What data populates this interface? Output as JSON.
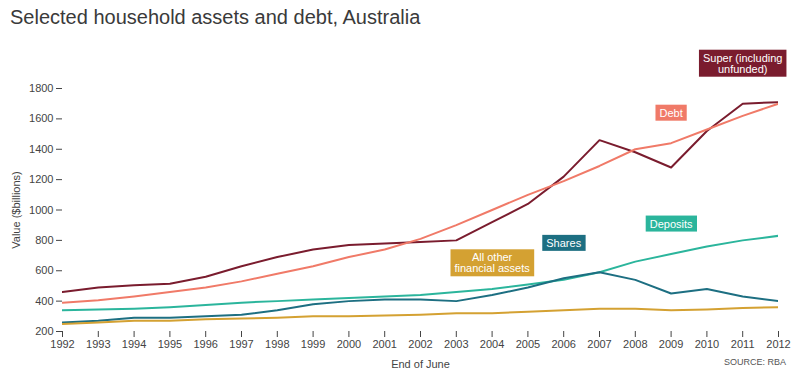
{
  "chart_data": {
    "type": "line",
    "title": "Selected household assets and debt, Australia",
    "caption": "SOURCE: RBA",
    "x_label": "End of June",
    "y_label": "Value ($billions)",
    "x": [
      1992,
      1993,
      1994,
      1995,
      1996,
      1997,
      1998,
      1999,
      2000,
      2001,
      2002,
      2003,
      2004,
      2005,
      2006,
      2007,
      2008,
      2009,
      2010,
      2011,
      2012
    ],
    "series": [
      {
        "name": "Super (including unfunded)",
        "color": "#7a1c2e",
        "values": [
          460,
          490,
          505,
          515,
          560,
          630,
          690,
          740,
          770,
          780,
          790,
          800,
          920,
          1040,
          1220,
          1460,
          1380,
          1280,
          1520,
          1700,
          1710
        ]
      },
      {
        "name": "Debt",
        "color": "#f07a68",
        "values": [
          390,
          405,
          430,
          460,
          490,
          530,
          580,
          630,
          690,
          740,
          810,
          900,
          1000,
          1100,
          1190,
          1290,
          1400,
          1440,
          1530,
          1620,
          1700
        ]
      },
      {
        "name": "Deposits",
        "color": "#2bb59c",
        "values": [
          340,
          345,
          350,
          360,
          375,
          390,
          400,
          410,
          420,
          430,
          440,
          460,
          480,
          510,
          540,
          590,
          660,
          710,
          760,
          800,
          830
        ]
      },
      {
        "name": "Shares",
        "color": "#1d6f82",
        "values": [
          260,
          270,
          290,
          290,
          300,
          310,
          340,
          380,
          400,
          410,
          410,
          400,
          440,
          490,
          550,
          590,
          540,
          450,
          480,
          430,
          400
        ]
      },
      {
        "name": "All other financial assets",
        "color": "#d4a132",
        "values": [
          250,
          260,
          270,
          270,
          280,
          285,
          290,
          300,
          300,
          305,
          310,
          320,
          320,
          330,
          340,
          350,
          350,
          340,
          345,
          355,
          360
        ]
      }
    ],
    "xlim": [
      1992,
      2012
    ],
    "xticks": [
      1992,
      1993,
      1994,
      1995,
      1996,
      1997,
      1998,
      1999,
      2000,
      2001,
      2002,
      2003,
      2004,
      2005,
      2006,
      2007,
      2008,
      2009,
      2010,
      2011,
      2012
    ],
    "ylim": [
      200,
      1800
    ],
    "yticks": [
      200,
      400,
      600,
      800,
      1000,
      1200,
      1400,
      1600,
      1800
    ],
    "grid": false
  }
}
